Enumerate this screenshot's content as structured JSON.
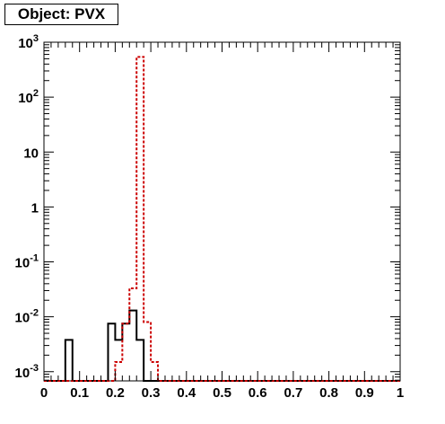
{
  "chart_data": {
    "type": "step-histogram",
    "title": "Object: PVX",
    "xlim": [
      0,
      1
    ],
    "ylim": [
      0.00068,
      1000
    ],
    "yscale": "log",
    "x_ticks": [
      {
        "v": 0,
        "label": "0"
      },
      {
        "v": 0.1,
        "label": "0.1"
      },
      {
        "v": 0.2,
        "label": "0.2"
      },
      {
        "v": 0.3,
        "label": "0.3"
      },
      {
        "v": 0.4,
        "label": "0.4"
      },
      {
        "v": 0.5,
        "label": "0.5"
      },
      {
        "v": 0.6,
        "label": "0.6"
      },
      {
        "v": 0.7,
        "label": "0.7"
      },
      {
        "v": 0.8,
        "label": "0.8"
      },
      {
        "v": 0.9,
        "label": "0.9"
      },
      {
        "v": 1,
        "label": "1"
      }
    ],
    "y_ticks": [
      {
        "v": 0.001,
        "base": "10",
        "exp": "-3"
      },
      {
        "v": 0.01,
        "base": "10",
        "exp": "-2"
      },
      {
        "v": 0.1,
        "base": "10",
        "exp": "-1"
      },
      {
        "v": 1,
        "base": "1",
        "exp": ""
      },
      {
        "v": 10,
        "base": "10",
        "exp": ""
      },
      {
        "v": 100,
        "base": "10",
        "exp": "2"
      },
      {
        "v": 1000,
        "base": "10",
        "exp": "3"
      }
    ],
    "bin_width": 0.02,
    "series": [
      {
        "color": "#000000",
        "style": "solid",
        "values": [
          0,
          0,
          0,
          0.0038,
          0,
          0,
          0,
          0,
          0,
          0.0075,
          0.0038,
          0.0075,
          0.013,
          0.0038,
          0,
          0,
          0,
          0,
          0,
          0,
          0,
          0,
          0,
          0,
          0,
          0,
          0,
          0,
          0,
          0,
          0,
          0,
          0,
          0,
          0,
          0,
          0,
          0,
          0,
          0,
          0,
          0,
          0,
          0,
          0,
          0,
          0,
          0,
          0,
          0
        ]
      },
      {
        "color": "#cc0000",
        "style": "dashed",
        "values": [
          0,
          0,
          0,
          0,
          0,
          0,
          0,
          0,
          0,
          0,
          0.0015,
          0.0075,
          0.033,
          540,
          0.008,
          0.0015,
          0,
          0,
          0,
          0,
          0,
          0,
          0,
          0,
          0,
          0,
          0,
          0,
          0,
          0,
          0,
          0,
          0,
          0,
          0,
          0,
          0,
          0,
          0,
          0,
          0,
          0,
          0,
          0,
          0,
          0,
          0,
          0,
          0,
          0
        ]
      }
    ]
  }
}
